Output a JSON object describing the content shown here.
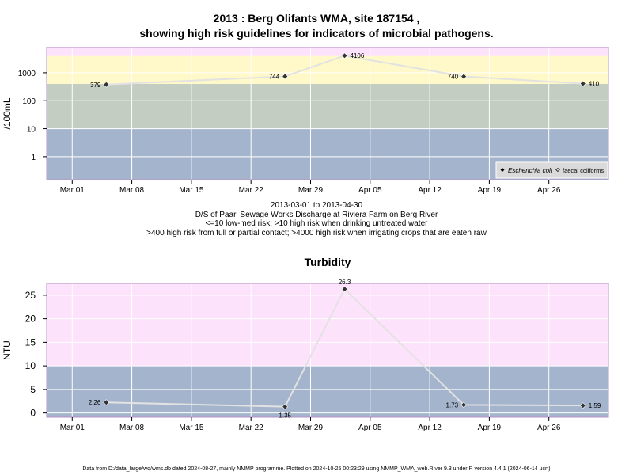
{
  "title_line1": "2013 : Berg Olifants WMA, site 187154 ,",
  "title_line2": "showing high risk guidelines for indicators of microbial pathogens.",
  "caption": {
    "date_range": "2013-03-01 to 2013-04-30",
    "location": "D/S of Paarl Sewage Works Discharge at Riviera Farm on Berg River",
    "guideline1": "<=10 low-med risk; >10 high risk when drinking untreated water",
    "guideline2": ">400 high risk from full or partial contact; >4000 high risk when irrigating crops that are eaten raw"
  },
  "footer": "Data from D:/data_large/wq/wms.db dated 2024-08-27, mainly NMMP programme. Plotted on 2024-10-25 00:23:29 using NMMP_WMA_web.R ver 9.3 under R version 4.4.1 (2024-06-14 ucrt)",
  "colors": {
    "band_blue": "#a3b4cc",
    "band_gray": "#c4cdc2",
    "band_yellow": "#fff8c8",
    "band_pink": "#fde2fb",
    "line": "#e2e2e2",
    "grid": "#ffffff",
    "frame": "#b490c8",
    "marker": "#333333"
  },
  "chart_data": [
    {
      "type": "line",
      "title": "",
      "ylabel": "/100mL",
      "xlabel": "",
      "y_scale": "log",
      "ylim": [
        0.15,
        8000
      ],
      "xlim": [
        "2013-02-26",
        "2013-05-03"
      ],
      "x_ticks": [
        "2013-03-01",
        "2013-03-08",
        "2013-03-15",
        "2013-03-22",
        "2013-03-29",
        "2013-04-05",
        "2013-04-12",
        "2013-04-19",
        "2013-04-26"
      ],
      "x_tick_labels": [
        "Mar 01",
        "Mar 08",
        "Mar 15",
        "Mar 22",
        "Mar 29",
        "Apr 05",
        "Apr 12",
        "Apr 19",
        "Apr 26"
      ],
      "y_ticks": [
        1,
        10,
        100,
        1000
      ],
      "y_tick_labels": [
        "1",
        "10",
        "100",
        "1000"
      ],
      "bands": [
        {
          "from": 0.15,
          "to": 10,
          "color": "#a3b4cc"
        },
        {
          "from": 10,
          "to": 400,
          "color": "#c4cdc2"
        },
        {
          "from": 400,
          "to": 4000,
          "color": "#fff8c8"
        },
        {
          "from": 4000,
          "to": 8000,
          "color": "#fde2fb"
        }
      ],
      "legend": {
        "position": "bottom-right",
        "entries": [
          "Escherichia coli",
          "faecal coliforms"
        ]
      },
      "series": [
        {
          "name": "Escherichia coli",
          "x": [
            "2013-03-05",
            "2013-03-26",
            "2013-04-02",
            "2013-04-16",
            "2013-04-30"
          ],
          "values": [
            379,
            744,
            4106,
            740,
            410
          ],
          "labels": [
            "379",
            "744",
            "4106",
            "740",
            "410"
          ],
          "label_side": [
            "left",
            "left",
            "right",
            "left",
            "right"
          ]
        }
      ]
    },
    {
      "type": "line",
      "title": "Turbidity",
      "ylabel": "NTU",
      "xlabel": "",
      "y_scale": "linear",
      "ylim": [
        -0.9,
        27.5
      ],
      "xlim": [
        "2013-02-26",
        "2013-05-03"
      ],
      "x_ticks": [
        "2013-03-01",
        "2013-03-08",
        "2013-03-15",
        "2013-03-22",
        "2013-03-29",
        "2013-04-05",
        "2013-04-12",
        "2013-04-19",
        "2013-04-26"
      ],
      "x_tick_labels": [
        "Mar 01",
        "Mar 08",
        "Mar 15",
        "Mar 22",
        "Mar 29",
        "Apr 05",
        "Apr 12",
        "Apr 19",
        "Apr 26"
      ],
      "y_ticks": [
        0,
        5,
        10,
        15,
        20,
        25
      ],
      "y_tick_labels": [
        "0",
        "5",
        "10",
        "15",
        "20",
        "25"
      ],
      "bands": [
        {
          "from": -0.9,
          "to": 10,
          "color": "#a3b4cc"
        },
        {
          "from": 10,
          "to": 27.5,
          "color": "#fde2fb"
        }
      ],
      "series": [
        {
          "x": [
            "2013-03-05",
            "2013-03-26",
            "2013-04-02",
            "2013-04-16",
            "2013-04-30"
          ],
          "values": [
            2.26,
            1.35,
            26.3,
            1.73,
            1.59
          ],
          "labels": [
            "2.26",
            "1.35",
            "26.3",
            "1.73",
            "1.59"
          ],
          "label_side": [
            "left",
            "below",
            "above",
            "left",
            "right"
          ]
        }
      ]
    }
  ]
}
